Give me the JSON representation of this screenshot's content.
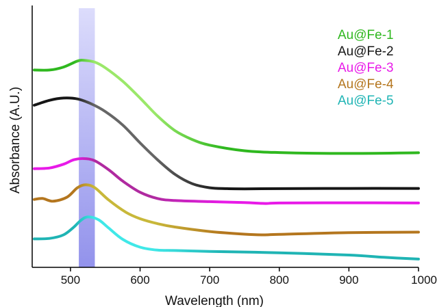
{
  "chart_data": {
    "type": "line",
    "xlabel": "Wavelength (nm)",
    "ylabel": "Absorbance (A.U.)",
    "xlim": [
      445,
      1000
    ],
    "ylim": [
      0,
      1
    ],
    "x_ticks": [
      500,
      600,
      700,
      800,
      900,
      1000
    ],
    "y_ticks": [],
    "grid": false,
    "legend_position": "top-right",
    "highlight_band": {
      "x_range": [
        512,
        535
      ],
      "color": "#9a9af0"
    },
    "series": [
      {
        "name": "Au@Fe-1",
        "color": "#2fb81f",
        "highlight_color": "#9be86a",
        "x": [
          448,
          470,
          490,
          510,
          520,
          535,
          550,
          575,
          600,
          625,
          650,
          675,
          700,
          750,
          800,
          900,
          1000
        ],
        "y": [
          0.825,
          0.825,
          0.838,
          0.865,
          0.868,
          0.86,
          0.835,
          0.775,
          0.7,
          0.62,
          0.555,
          0.515,
          0.49,
          0.465,
          0.457,
          0.453,
          0.456
        ]
      },
      {
        "name": "Au@Fe-2",
        "color": "#151515",
        "highlight_color": "#666666",
        "x": [
          448,
          470,
          490,
          510,
          530,
          550,
          575,
          600,
          625,
          650,
          675,
          700,
          725,
          750,
          800,
          900,
          1000
        ],
        "y": [
          0.668,
          0.69,
          0.7,
          0.696,
          0.674,
          0.64,
          0.58,
          0.5,
          0.425,
          0.36,
          0.318,
          0.3,
          0.296,
          0.295,
          0.296,
          0.297,
          0.297
        ]
      },
      {
        "name": "Au@Fe-3",
        "color": "#e81ae8",
        "highlight_color": "#b02aa0",
        "x": [
          448,
          470,
          490,
          505,
          520,
          535,
          555,
          575,
          600,
          625,
          650,
          700,
          750,
          780,
          800,
          900,
          1000
        ],
        "y": [
          0.385,
          0.388,
          0.405,
          0.425,
          0.43,
          0.42,
          0.38,
          0.33,
          0.28,
          0.252,
          0.243,
          0.238,
          0.234,
          0.23,
          0.232,
          0.233,
          0.232
        ]
      },
      {
        "name": "Au@Fe-4",
        "color": "#b4761e",
        "highlight_color": "#c8b83a",
        "x": [
          448,
          460,
          475,
          495,
          510,
          522,
          535,
          555,
          580,
          600,
          625,
          650,
          700,
          750,
          775,
          800,
          900,
          1000
        ],
        "y": [
          0.248,
          0.252,
          0.24,
          0.258,
          0.3,
          0.313,
          0.3,
          0.245,
          0.19,
          0.162,
          0.14,
          0.125,
          0.105,
          0.093,
          0.09,
          0.092,
          0.1,
          0.102
        ]
      },
      {
        "name": "Au@Fe-5",
        "color": "#1fb4b4",
        "highlight_color": "#40e8e8",
        "x": [
          448,
          470,
          490,
          505,
          515,
          525,
          540,
          555,
          575,
          600,
          625,
          650,
          700,
          800,
          900,
          950,
          1000
        ],
        "y": [
          0.072,
          0.074,
          0.09,
          0.125,
          0.155,
          0.17,
          0.158,
          0.12,
          0.07,
          0.035,
          0.022,
          0.02,
          0.016,
          0.01,
          0.0,
          -0.01,
          -0.018
        ]
      }
    ]
  }
}
